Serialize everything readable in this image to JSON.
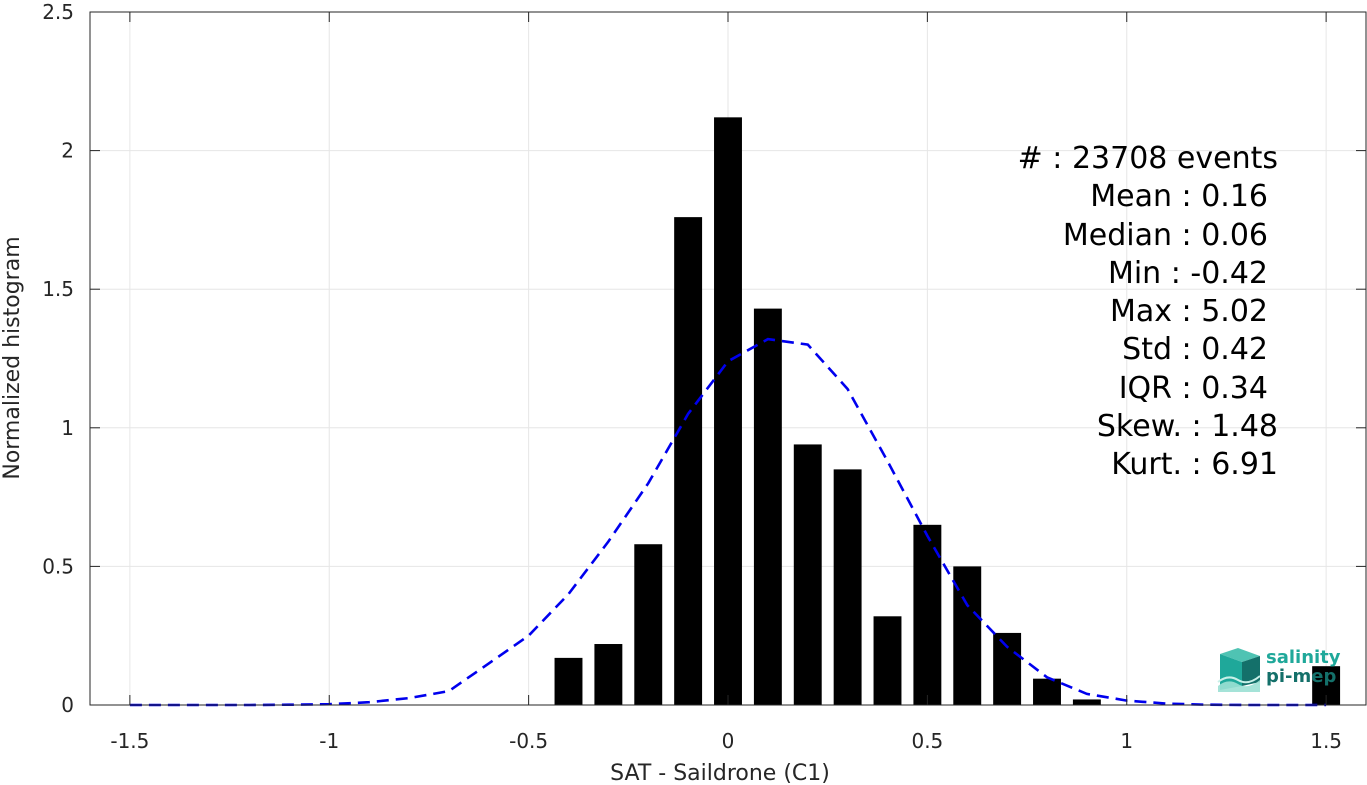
{
  "chart_data": {
    "type": "bar",
    "xlabel": "SAT - Saildrone (C1)",
    "ylabel": "Normalized histogram",
    "xlim": [
      -1.6,
      1.6
    ],
    "ylim": [
      0,
      2.5
    ],
    "xticks": [
      -1.5,
      -1,
      -0.5,
      0,
      0.5,
      1,
      1.5
    ],
    "xtick_labels": [
      "-1.5",
      "-1",
      "-0.5",
      "0",
      "0.5",
      "1",
      "1.5"
    ],
    "yticks": [
      0,
      0.5,
      1,
      1.5,
      2,
      2.5
    ],
    "ytick_labels": [
      "0",
      "0.5",
      "1",
      "1.5",
      "2",
      "2.5"
    ],
    "grid": true,
    "bin_width": 0.1,
    "bars": {
      "x": [
        -0.4,
        -0.3,
        -0.2,
        -0.1,
        0.0,
        0.1,
        0.2,
        0.3,
        0.4,
        0.5,
        0.6,
        0.7,
        0.8,
        0.9,
        1.5
      ],
      "values": [
        0.17,
        0.22,
        0.58,
        1.76,
        2.12,
        1.43,
        0.94,
        0.85,
        0.32,
        0.65,
        0.5,
        0.26,
        0.095,
        0.02,
        0.14
      ]
    },
    "fit_curve": {
      "style": "dashed",
      "color": "#0000ee",
      "x": [
        -1.5,
        -1.4,
        -1.3,
        -1.2,
        -1.1,
        -1.0,
        -0.9,
        -0.8,
        -0.7,
        -0.6,
        -0.5,
        -0.4,
        -0.3,
        -0.2,
        -0.1,
        0.0,
        0.1,
        0.2,
        0.3,
        0.4,
        0.5,
        0.6,
        0.7,
        0.8,
        0.9,
        1.0,
        1.1,
        1.2,
        1.3,
        1.4,
        1.5
      ],
      "y": [
        0.0,
        0.0,
        0.0,
        0.0,
        0.001,
        0.003,
        0.01,
        0.025,
        0.05,
        0.15,
        0.25,
        0.4,
        0.59,
        0.8,
        1.05,
        1.24,
        1.32,
        1.3,
        1.14,
        0.88,
        0.61,
        0.36,
        0.21,
        0.1,
        0.04,
        0.016,
        0.005,
        0.001,
        0.0,
        0.0,
        0.0
      ]
    },
    "annotations": [
      "#  : 23708 events",
      "Mean : 0.16",
      "Median : 0.06",
      "Min : -0.42",
      "Max : 5.02",
      "Std : 0.42",
      "IQR : 0.34",
      "Skew. : 1.48",
      "Kurt. : 6.91"
    ]
  },
  "logo": {
    "line1": "salinity",
    "line2": "pi-mep"
  },
  "colors": {
    "bars": "#000000",
    "fit": "#0000ee",
    "grid": "#e6e6e6",
    "axis": "#262626",
    "logo": "#1fa89a"
  }
}
